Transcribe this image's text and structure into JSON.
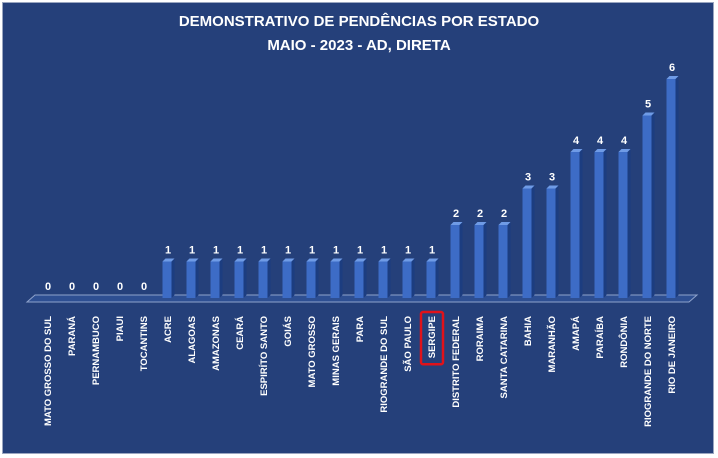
{
  "chart_data": {
    "type": "bar",
    "title": "DEMONSTRATIVO DE PENDÊNCIAS POR ESTADO",
    "subtitle": "MAIO - 2023 - AD, DIRETA",
    "categories": [
      "MATO GROSSO DO SUL",
      "PARANÁ",
      "PERNAMBUCO",
      "PIAUI",
      "TOCANTINS",
      "ACRE",
      "ALAGOAS",
      "AMAZONAS",
      "CEARÁ",
      "ESPIRÍTO SANTO",
      "GOIÁS",
      "MATO GROSSO",
      "MINAS GERAIS",
      "PARA",
      "RIOGRANDE DO SUL",
      "SÃO PAULO",
      "SERGIPE",
      "DISTRITO FEDERAL",
      "RORAIMA",
      "SANTA CATARINA",
      "BAHIA",
      "MARANHÃO",
      "AMAPÁ",
      "PARAÍBA",
      "RONDÔNIA",
      "RIOGRANDE DO NORTE",
      "RIO DE JANEIRO"
    ],
    "values": [
      0,
      0,
      0,
      0,
      0,
      1,
      1,
      1,
      1,
      1,
      1,
      1,
      1,
      1,
      1,
      1,
      1,
      2,
      2,
      2,
      3,
      3,
      4,
      4,
      4,
      5,
      6
    ],
    "highlight": "SERGIPE",
    "ylim": [
      0,
      6
    ],
    "grid": false,
    "legend": "none",
    "colors": {
      "background": "#25407a",
      "bar": "#3d6cc6",
      "bar_dark": "#1c3d80",
      "bar_light": "#6f9be6",
      "text": "#ffffff",
      "highlight": "#e0121a"
    }
  }
}
